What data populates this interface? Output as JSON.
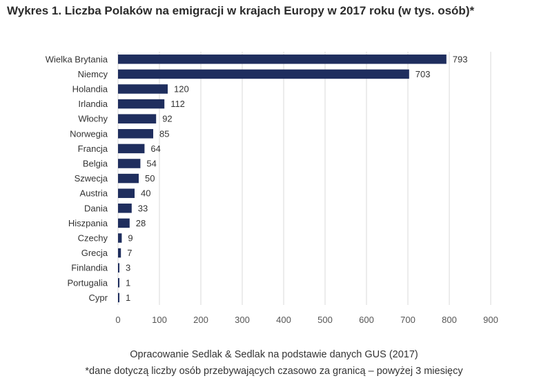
{
  "title": "Wykres 1. Liczba Polaków na emigracji w krajach Europy w 2017 roku (w tys. osób)*",
  "footer": {
    "source": "Opracowanie Sedlak & Sedlak na podstawie danych GUS (2017)",
    "note": "*dane dotyczą liczby osób przebywających czasowo za granicą – powyżej 3 miesięcy"
  },
  "colors": {
    "bar": "#1f2e5e",
    "grid": "#d9d9d9"
  },
  "chart_data": {
    "type": "bar",
    "orientation": "horizontal",
    "title": "Wykres 1. Liczba Polaków na emigracji w krajach Europy w 2017 roku (w tys. osób)*",
    "categories": [
      "Wielka Brytania",
      "Niemcy",
      "Holandia",
      "Irlandia",
      "Włochy",
      "Norwegia",
      "Francja",
      "Belgia",
      "Szwecja",
      "Austria",
      "Dania",
      "Hiszpania",
      "Czechy",
      "Grecja",
      "Finlandia",
      "Portugalia",
      "Cypr"
    ],
    "values": [
      793,
      703,
      120,
      112,
      92,
      85,
      64,
      54,
      50,
      40,
      33,
      28,
      9,
      7,
      3,
      1,
      1
    ],
    "xlim": [
      0,
      900
    ],
    "xticks": [
      0,
      100,
      200,
      300,
      400,
      500,
      600,
      700,
      800,
      900
    ],
    "grid": "vertical",
    "data_labels": true
  }
}
